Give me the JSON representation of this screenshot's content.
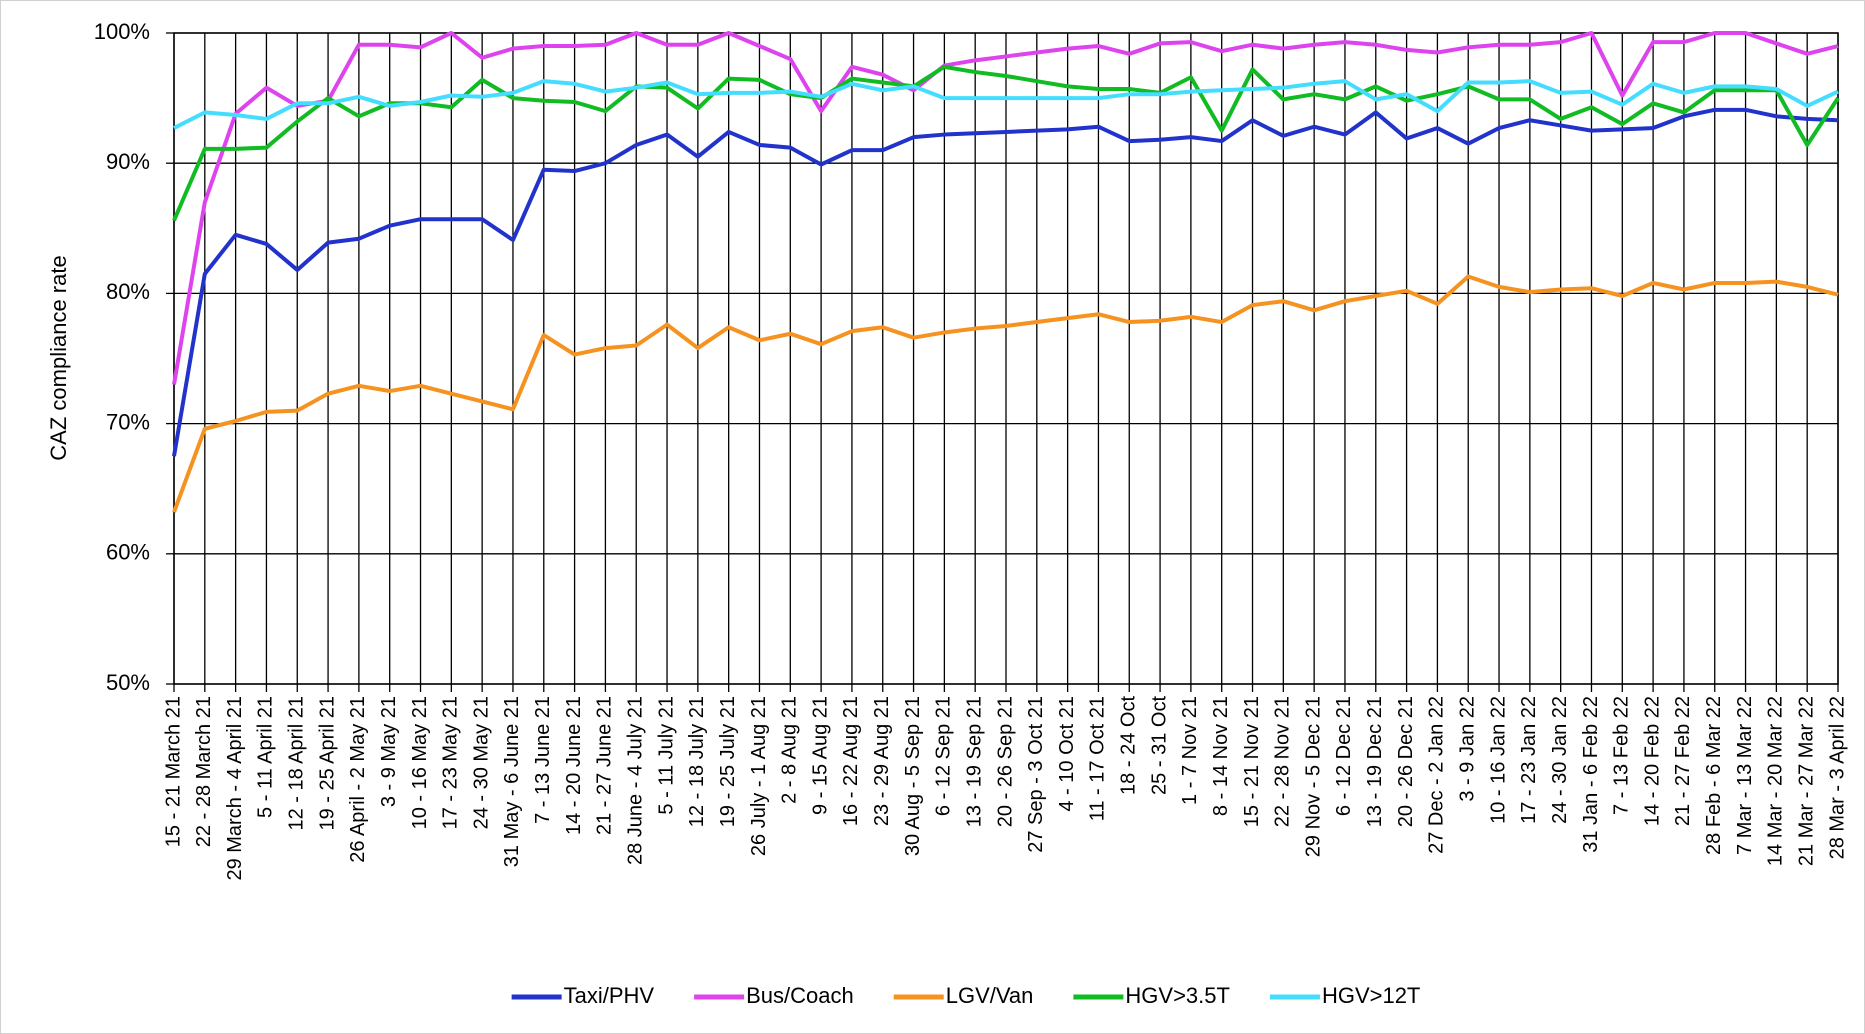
{
  "chart_data": {
    "type": "line",
    "y_label": "CAZ compliance rate",
    "ylim": [
      50,
      100
    ],
    "yticks": [
      {
        "value": 50,
        "label": "50%"
      },
      {
        "value": 60,
        "label": "60%"
      },
      {
        "value": 70,
        "label": "70%"
      },
      {
        "value": 80,
        "label": "80%"
      },
      {
        "value": 90,
        "label": "90%"
      },
      {
        "value": 100,
        "label": "100%"
      }
    ],
    "grid": true,
    "legend": "bottom",
    "categories": [
      "15 - 21 March 21",
      "22 - 28 March 21",
      "29 March - 4 April 21",
      "5 - 11 April 21",
      "12 - 18 April 21",
      "19 - 25 April 21",
      "26 April - 2 May 21",
      "3 - 9 May 21",
      "10 - 16 May 21",
      "17 - 23 May 21",
      "24 - 30 May 21",
      "31 May - 6 June 21",
      "7 - 13 June 21",
      "14 - 20 June 21",
      "21 - 27 June 21",
      "28 June - 4 July 21",
      "5 - 11 July 21",
      "12 - 18 July 21",
      "19 - 25 July 21",
      "26 July - 1 Aug 21",
      "2 - 8 Aug 21",
      "9 - 15 Aug 21",
      "16 - 22 Aug 21",
      "23 - 29 Aug 21",
      "30 Aug - 5 Sep 21",
      "6 - 12 Sep 21",
      "13 - 19 Sep 21",
      "20 - 26 Sep 21",
      "27 Sep - 3 Oct 21",
      "4 - 10 Oct 21",
      "11 - 17 Oct 21",
      "18 - 24 Oct",
      "25 - 31 Oct",
      "1 - 7 Nov 21",
      "8 - 14 Nov 21",
      "15 - 21 Nov 21",
      "22 - 28 Nov 21",
      "29 Nov - 5 Dec 21",
      "6 - 12 Dec 21",
      "13 - 19 Dec 21",
      "20 - 26 Dec 21",
      "27 Dec - 2 Jan 22",
      "3 - 9 Jan 22",
      "10 - 16 Jan 22",
      "17 - 23 Jan 22",
      "24 - 30 Jan 22",
      "31 Jan - 6 Feb 22",
      "7 - 13 Feb 22",
      "14 - 20 Feb 22",
      "21 - 27 Feb 22",
      "28 Feb - 6 Mar 22",
      "7 Mar - 13 Mar 22",
      "14 Mar - 20 Mar 22",
      "21 Mar - 27 Mar 22",
      "28 Mar - 3 April 22"
    ],
    "series": [
      {
        "name": "Taxi/PHV",
        "color": "#2233cc",
        "values": [
          67.5,
          81.5,
          84.5,
          83.8,
          81.8,
          83.9,
          84.2,
          85.2,
          85.7,
          85.7,
          85.7,
          84.1,
          89.5,
          89.4,
          90.0,
          91.4,
          92.2,
          90.5,
          92.4,
          91.4,
          91.2,
          89.9,
          91.0,
          91.0,
          92.0,
          92.2,
          92.3,
          92.4,
          92.5,
          92.6,
          92.8,
          91.7,
          91.8,
          92.0,
          91.7,
          93.3,
          92.1,
          92.8,
          92.2,
          93.9,
          91.9,
          92.7,
          91.5,
          92.7,
          93.3,
          92.9,
          92.5,
          92.6,
          92.7,
          93.6,
          94.1,
          94.1,
          93.6,
          93.4,
          93.3
        ]
      },
      {
        "name": "Bus/Coach",
        "color": "#dd44ee",
        "values": [
          73.0,
          87.0,
          93.8,
          95.8,
          94.4,
          94.8,
          99.1,
          99.1,
          98.9,
          100,
          98.1,
          98.8,
          99.0,
          99.0,
          99.1,
          100,
          99.1,
          99.1,
          100,
          99.0,
          98.0,
          94.0,
          97.4,
          96.8,
          95.6,
          97.5,
          97.9,
          98.2,
          98.5,
          98.8,
          99.0,
          98.4,
          99.2,
          99.3,
          98.6,
          99.1,
          98.8,
          99.1,
          99.3,
          99.1,
          98.7,
          98.5,
          98.9,
          99.1,
          99.1,
          99.3,
          100,
          95.2,
          99.3,
          99.3,
          100,
          100,
          99.2,
          98.4,
          99.0
        ]
      },
      {
        "name": "LGV/Van",
        "color": "#f59220",
        "values": [
          63.2,
          69.6,
          70.2,
          70.9,
          71.0,
          72.3,
          72.9,
          72.5,
          72.9,
          72.3,
          71.7,
          71.1,
          76.8,
          75.3,
          75.8,
          76.0,
          77.6,
          75.8,
          77.4,
          76.4,
          76.9,
          76.1,
          77.1,
          77.4,
          76.6,
          77.0,
          77.3,
          77.5,
          77.8,
          78.1,
          78.4,
          77.8,
          77.9,
          78.2,
          77.8,
          79.1,
          79.4,
          78.7,
          79.4,
          79.8,
          80.2,
          79.2,
          81.3,
          80.5,
          80.1,
          80.3,
          80.4,
          79.8,
          80.8,
          80.3,
          80.8,
          80.8,
          80.9,
          80.5,
          79.9
        ]
      },
      {
        "name": "HGV>3.5T",
        "color": "#11bb22",
        "values": [
          85.6,
          91.1,
          91.1,
          91.2,
          93.2,
          95.0,
          93.6,
          94.6,
          94.6,
          94.3,
          96.4,
          95.0,
          94.8,
          94.7,
          94.0,
          95.9,
          95.8,
          94.2,
          96.5,
          96.4,
          95.3,
          95.0,
          96.5,
          96.2,
          95.9,
          97.4,
          97.0,
          96.7,
          96.3,
          95.9,
          95.7,
          95.7,
          95.4,
          96.6,
          92.5,
          97.2,
          94.9,
          95.3,
          94.9,
          95.9,
          94.8,
          95.3,
          95.9,
          94.9,
          94.9,
          93.4,
          94.3,
          93.0,
          94.6,
          93.9,
          95.6,
          95.6,
          95.6,
          91.4,
          95.0
        ]
      },
      {
        "name": "HGV>12T",
        "color": "#44ddff",
        "values": [
          92.7,
          93.9,
          93.7,
          93.4,
          94.6,
          94.6,
          95.1,
          94.4,
          94.7,
          95.2,
          95.1,
          95.4,
          96.3,
          96.1,
          95.5,
          95.8,
          96.2,
          95.3,
          95.4,
          95.4,
          95.5,
          95.1,
          96.1,
          95.6,
          95.9,
          95.0,
          95.0,
          95.0,
          95.0,
          95.0,
          95.0,
          95.3,
          95.3,
          95.5,
          95.6,
          95.7,
          95.8,
          96.1,
          96.3,
          94.9,
          95.3,
          94.0,
          96.2,
          96.2,
          96.3,
          95.4,
          95.5,
          94.5,
          96.1,
          95.4,
          95.9,
          95.9,
          95.7,
          94.4,
          95.5
        ]
      }
    ]
  }
}
